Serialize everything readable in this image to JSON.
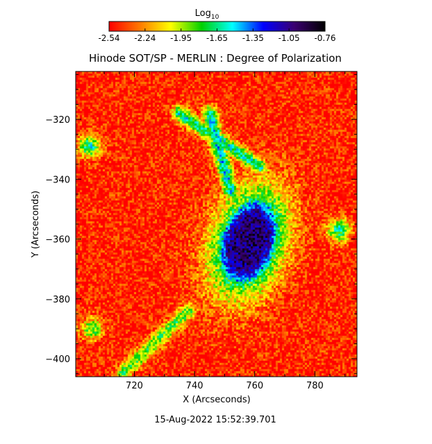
{
  "chart_data": {
    "type": "heatmap",
    "title": "Hinode SOT/SP - MERLIN : Degree of Polarization",
    "xlabel": "X (Arcseconds)",
    "ylabel": "Y (Arcseconds)",
    "xlim": [
      700.5,
      794
    ],
    "ylim": [
      -406,
      -304
    ],
    "x_ticks": [
      720,
      740,
      760,
      780
    ],
    "y_ticks": [
      -320,
      -340,
      -360,
      -380,
      -400
    ],
    "timestamp": "15-Aug-2022 15:52:39.701",
    "colorbar": {
      "label_base": "Log",
      "label_sub": "10",
      "ticks": [
        "-2.54",
        "-2.24",
        "-1.95",
        "-1.65",
        "-1.35",
        "-1.05",
        "-0.76"
      ],
      "range": [
        -2.54,
        -0.76
      ],
      "colormap": [
        "#ff0000",
        "#ff7a00",
        "#ffff00",
        "#00d000",
        "#00ffff",
        "#0000ff",
        "#3a0070",
        "#000000"
      ]
    },
    "features": [
      {
        "name": "sunspot",
        "center_x": 758,
        "center_y": -361,
        "semi_axis_x": 13,
        "semi_axis_y": 21,
        "rotation_deg": 18,
        "peak_log_dop": -1.0
      },
      {
        "name": "plage-ridge",
        "from": [
          735,
          -318
        ],
        "to": [
          762,
          -336
        ],
        "peak_log_dop": -1.6
      },
      {
        "name": "plage-ridge",
        "from": [
          745,
          -318
        ],
        "to": [
          752,
          -344
        ],
        "peak_log_dop": -1.5
      },
      {
        "name": "plage-ridge",
        "from": [
          716,
          -405
        ],
        "to": [
          738,
          -384
        ],
        "peak_log_dop": -1.8
      },
      {
        "name": "plage-patch",
        "center_x": 705,
        "center_y": -329,
        "peak_log_dop": -1.6
      },
      {
        "name": "plage-patch",
        "center_x": 788,
        "center_y": -357,
        "peak_log_dop": -1.6
      },
      {
        "name": "plage-patch",
        "center_x": 706,
        "center_y": -390,
        "peak_log_dop": -1.8
      }
    ]
  }
}
